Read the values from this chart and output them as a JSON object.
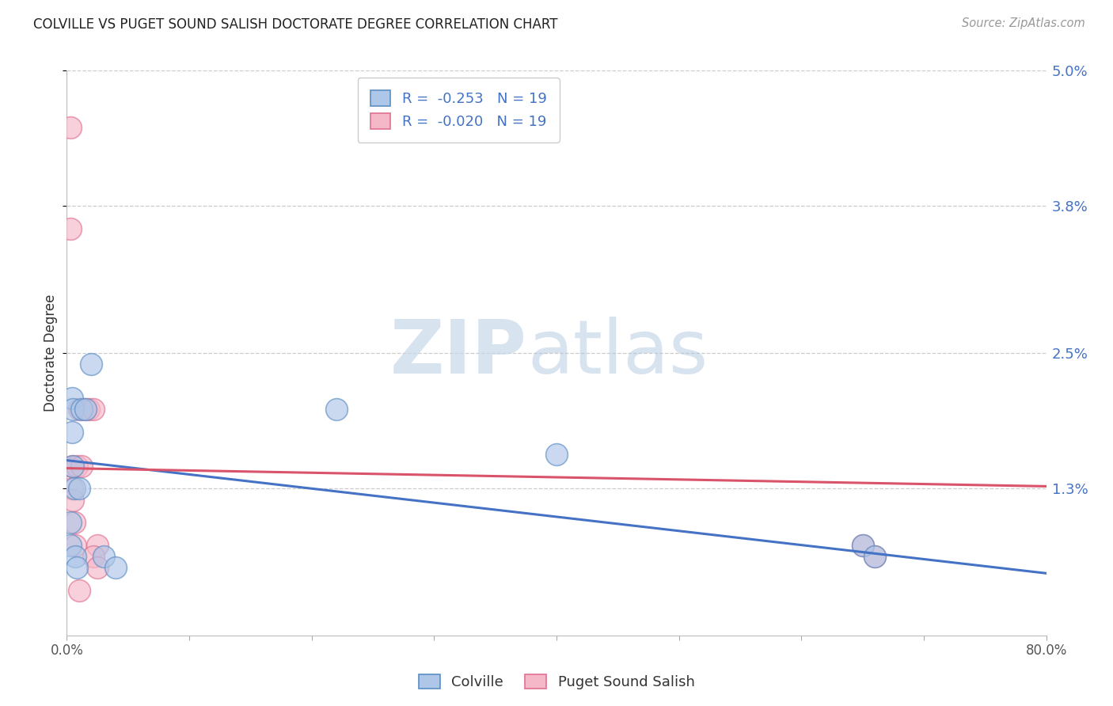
{
  "title": "COLVILLE VS PUGET SOUND SALISH DOCTORATE DEGREE CORRELATION CHART",
  "source": "Source: ZipAtlas.com",
  "ylabel": "Doctorate Degree",
  "xlim": [
    0,
    0.8
  ],
  "ylim": [
    0,
    0.05
  ],
  "yticks": [
    0.013,
    0.025,
    0.038,
    0.05
  ],
  "ytick_labels": [
    "1.3%",
    "2.5%",
    "3.8%",
    "5.0%"
  ],
  "xticks": [
    0.0,
    0.1,
    0.2,
    0.3,
    0.4,
    0.5,
    0.6,
    0.7,
    0.8
  ],
  "xtick_labels": [
    "0.0%",
    "",
    "",
    "",
    "",
    "",
    "",
    "",
    "80.0%"
  ],
  "colville_color": "#aec6e8",
  "puget_color": "#f5b8c8",
  "colville_edge_color": "#5b8ec4",
  "puget_edge_color": "#e07090",
  "colville_line_color": "#4472c4",
  "puget_line_color": "#d9546a",
  "legend_r_colville": "R =  -0.253",
  "legend_n_colville": "N = 19",
  "legend_r_puget": "R =  -0.020",
  "legend_n_puget": "N = 19",
  "colville_x": [
    0.003,
    0.003,
    0.004,
    0.004,
    0.005,
    0.005,
    0.006,
    0.007,
    0.008,
    0.01,
    0.012,
    0.015,
    0.02,
    0.03,
    0.04,
    0.22,
    0.4,
    0.65,
    0.66
  ],
  "colville_y": [
    0.01,
    0.008,
    0.021,
    0.018,
    0.02,
    0.015,
    0.013,
    0.007,
    0.006,
    0.013,
    0.02,
    0.02,
    0.024,
    0.007,
    0.006,
    0.02,
    0.016,
    0.008,
    0.007
  ],
  "puget_x": [
    0.003,
    0.003,
    0.004,
    0.004,
    0.005,
    0.006,
    0.007,
    0.008,
    0.01,
    0.012,
    0.015,
    0.018,
    0.022,
    0.025,
    0.022,
    0.025,
    0.01,
    0.65,
    0.66
  ],
  "puget_y": [
    0.045,
    0.036,
    0.015,
    0.013,
    0.012,
    0.01,
    0.008,
    0.015,
    0.02,
    0.015,
    0.02,
    0.02,
    0.02,
    0.008,
    0.007,
    0.006,
    0.004,
    0.008,
    0.007
  ],
  "colville_trend": [
    0.0155,
    0.0055
  ],
  "puget_trend": [
    0.0148,
    0.0132
  ],
  "watermark_zip": "ZIP",
  "watermark_atlas": "atlas",
  "background_color": "#ffffff",
  "grid_color": "#cccccc",
  "marker_size": 400
}
